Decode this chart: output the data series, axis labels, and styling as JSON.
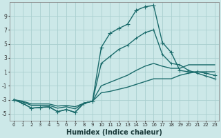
{
  "bg_color": "#cce8e8",
  "grid_color": "#aacfcf",
  "line_color": "#1a6b6b",
  "line_width": 1.0,
  "xlabel": "Humidex (Indice chaleur)",
  "xlabel_fontsize": 7,
  "xlabel_fontweight": "bold",
  "ylim": [
    -6,
    11
  ],
  "xlim": [
    -0.5,
    23.5
  ],
  "yticks": [
    -5,
    -3,
    -1,
    1,
    3,
    5,
    7,
    9
  ],
  "xticks": [
    0,
    1,
    2,
    3,
    4,
    5,
    6,
    7,
    8,
    9,
    10,
    11,
    12,
    13,
    14,
    15,
    16,
    17,
    18,
    19,
    20,
    21,
    22,
    23
  ],
  "curve1_x": [
    0,
    1,
    2,
    3,
    4,
    5,
    6,
    7,
    8,
    9,
    10,
    11,
    12,
    13,
    14,
    15,
    16,
    17,
    18,
    19,
    20,
    21,
    22,
    23
  ],
  "curve1_y": [
    -3.0,
    -3.5,
    -4.2,
    -4.1,
    -4.0,
    -4.7,
    -4.4,
    -4.8,
    -3.5,
    -3.2,
    4.5,
    6.5,
    7.2,
    7.8,
    9.8,
    10.3,
    10.5,
    5.2,
    3.8,
    1.2,
    1.0,
    1.0,
    0.8,
    0.5
  ],
  "curve2_x": [
    0,
    1,
    2,
    3,
    4,
    5,
    6,
    7,
    8,
    9,
    10,
    11,
    12,
    13,
    14,
    15,
    16,
    17,
    18,
    19,
    20,
    21,
    22,
    23
  ],
  "curve2_y": [
    -3.0,
    -3.5,
    -4.2,
    -4.1,
    -4.0,
    -4.7,
    -4.4,
    -4.8,
    -3.5,
    -3.2,
    2.2,
    3.2,
    4.2,
    4.8,
    5.8,
    6.6,
    7.0,
    3.5,
    2.2,
    2.0,
    1.2,
    0.8,
    0.4,
    0.0
  ],
  "curve3_x": [
    0,
    1,
    2,
    3,
    4,
    5,
    6,
    7,
    8,
    9,
    10,
    11,
    12,
    13,
    14,
    15,
    16,
    17,
    18,
    19,
    20,
    21,
    22,
    23
  ],
  "curve3_y": [
    -3.0,
    -3.3,
    -3.8,
    -3.8,
    -3.8,
    -4.2,
    -4.0,
    -4.3,
    -3.5,
    -3.2,
    -1.0,
    -0.5,
    0.0,
    0.5,
    1.2,
    1.8,
    2.2,
    1.8,
    1.5,
    1.5,
    2.0,
    2.0,
    2.0,
    2.0
  ],
  "curve4_x": [
    0,
    1,
    2,
    3,
    4,
    5,
    6,
    7,
    8,
    9,
    10,
    11,
    12,
    13,
    14,
    15,
    16,
    17,
    18,
    19,
    20,
    21,
    22,
    23
  ],
  "curve4_y": [
    -3.0,
    -3.2,
    -3.6,
    -3.6,
    -3.6,
    -3.9,
    -3.8,
    -4.0,
    -3.5,
    -3.2,
    -2.0,
    -1.8,
    -1.5,
    -1.2,
    -0.8,
    -0.4,
    0.0,
    0.0,
    0.0,
    0.5,
    0.8,
    1.0,
    1.0,
    1.0
  ]
}
